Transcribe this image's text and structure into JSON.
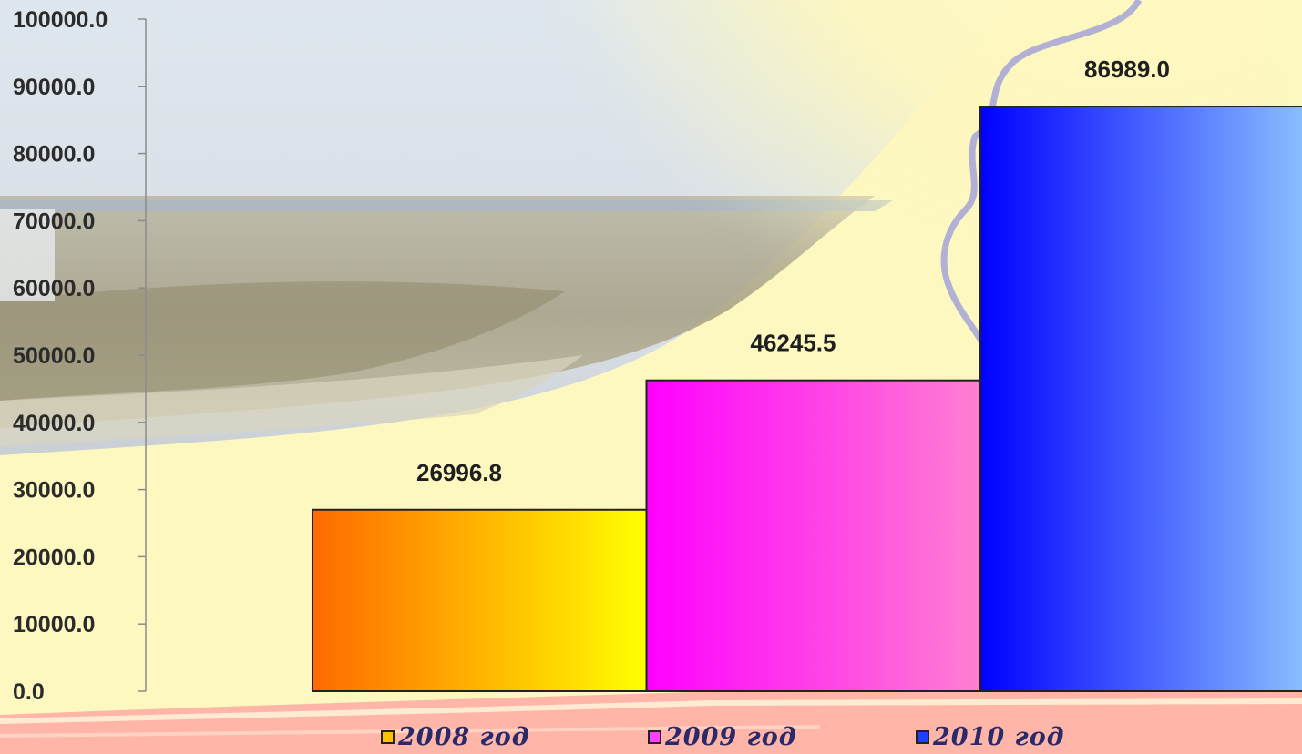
{
  "chart_data": {
    "type": "bar",
    "categories": [
      "2008 год",
      "2009 год",
      "2010 год"
    ],
    "series": [
      {
        "name": "2008 год",
        "values": [
          26996.8,
          null,
          null
        ]
      },
      {
        "name": "2009 год",
        "values": [
          null,
          46245.5,
          null
        ]
      },
      {
        "name": "2010 год",
        "values": [
          null,
          null,
          86989.0
        ]
      }
    ],
    "values": [
      26996.8,
      46245.5,
      86989.0
    ],
    "value_labels": [
      "26996.8",
      "46245.5",
      "86989.0"
    ],
    "y_ticks": [
      "0.0",
      "10000.0",
      "20000.0",
      "30000.0",
      "40000.0",
      "50000.0",
      "60000.0",
      "70000.0",
      "80000.0",
      "90000.0",
      "100000.0"
    ],
    "ylim": [
      0,
      100000
    ],
    "title": "",
    "xlabel": "",
    "ylabel": "",
    "grid": false,
    "legend_position": "bottom",
    "colors": [
      {
        "from": "#ff6a00",
        "to": "#ffff00"
      },
      {
        "from": "#ff00ff",
        "to": "#ff80d0"
      },
      {
        "from": "#0000ff",
        "to": "#8ec4ff"
      }
    ]
  },
  "legend": {
    "items": [
      {
        "label": "2008 год",
        "color": "#ffc000"
      },
      {
        "label": "2009 год",
        "color": "#ff40ff"
      },
      {
        "label": "2010 год",
        "color": "#2040ff"
      }
    ]
  }
}
